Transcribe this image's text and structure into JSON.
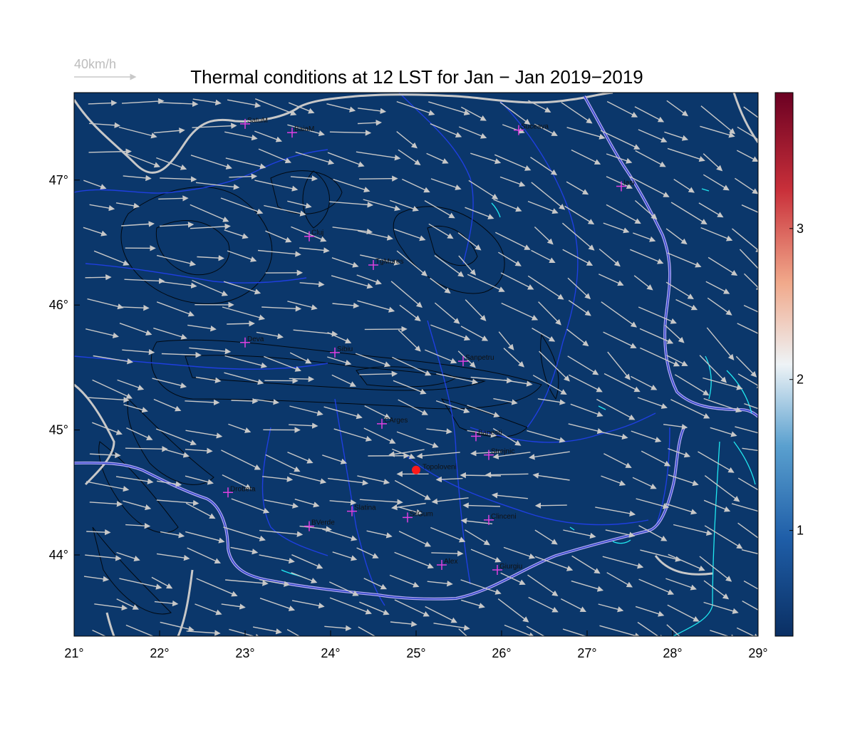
{
  "title": "Thermal conditions at 12 LST for Jan − Jan  2019−2019",
  "wind_scale_label": "40km/h",
  "map": {
    "background_color": "#0b376b",
    "arrow_color": "#c8c8c8",
    "border_color": "#c8c8c8",
    "river_color": "#1f3fe0",
    "lake_color": "#20e8f0",
    "x_ticks": [
      21,
      22,
      23,
      24,
      25,
      26,
      27,
      28,
      29
    ],
    "y_ticks": [
      44,
      45,
      46,
      47
    ],
    "lon_range": [
      21,
      29
    ],
    "lat_range": [
      43.35,
      47.7
    ]
  },
  "colorbar": {
    "ticks": [
      "1",
      "2",
      "3"
    ],
    "range": [
      0.3,
      3.9
    ]
  },
  "stations": [
    {
      "name": "SatuM",
      "lon": 23.0,
      "lat": 47.45
    },
    {
      "name": "BaiaM",
      "lon": 23.55,
      "lat": 47.38
    },
    {
      "name": "Suceava",
      "lon": 26.2,
      "lat": 47.4
    },
    {
      "name": "Iasi",
      "lon": 27.4,
      "lat": 46.95
    },
    {
      "name": "Cluj",
      "lon": 23.75,
      "lat": 46.55
    },
    {
      "name": "TgMures",
      "lon": 24.5,
      "lat": 46.32
    },
    {
      "name": "Deva",
      "lon": 23.0,
      "lat": 45.7
    },
    {
      "name": "Sibiu",
      "lon": 24.05,
      "lat": 45.62
    },
    {
      "name": "Sanpetru",
      "lon": 25.55,
      "lat": 45.55
    },
    {
      "name": "CArges",
      "lon": 24.6,
      "lat": 45.05
    },
    {
      "name": "Banesti",
      "lon": 25.7,
      "lat": 44.95
    },
    {
      "name": "Strejnic",
      "lon": 25.85,
      "lat": 44.8
    },
    {
      "name": "Drobeta",
      "lon": 22.8,
      "lat": 44.5
    },
    {
      "name": "Slatina",
      "lon": 24.25,
      "lat": 44.35
    },
    {
      "name": "SilGum",
      "lon": 24.9,
      "lat": 44.3
    },
    {
      "name": "Clinceni",
      "lon": 25.85,
      "lat": 44.28
    },
    {
      "name": "BVerde",
      "lon": 23.75,
      "lat": 44.23
    },
    {
      "name": "Alex",
      "lon": 25.3,
      "lat": 43.92
    },
    {
      "name": "Giurgiu",
      "lon": 25.95,
      "lat": 43.88
    }
  ],
  "reference_site": {
    "name": "Topoloveni",
    "lon": 25.0,
    "lat": 44.68
  }
}
